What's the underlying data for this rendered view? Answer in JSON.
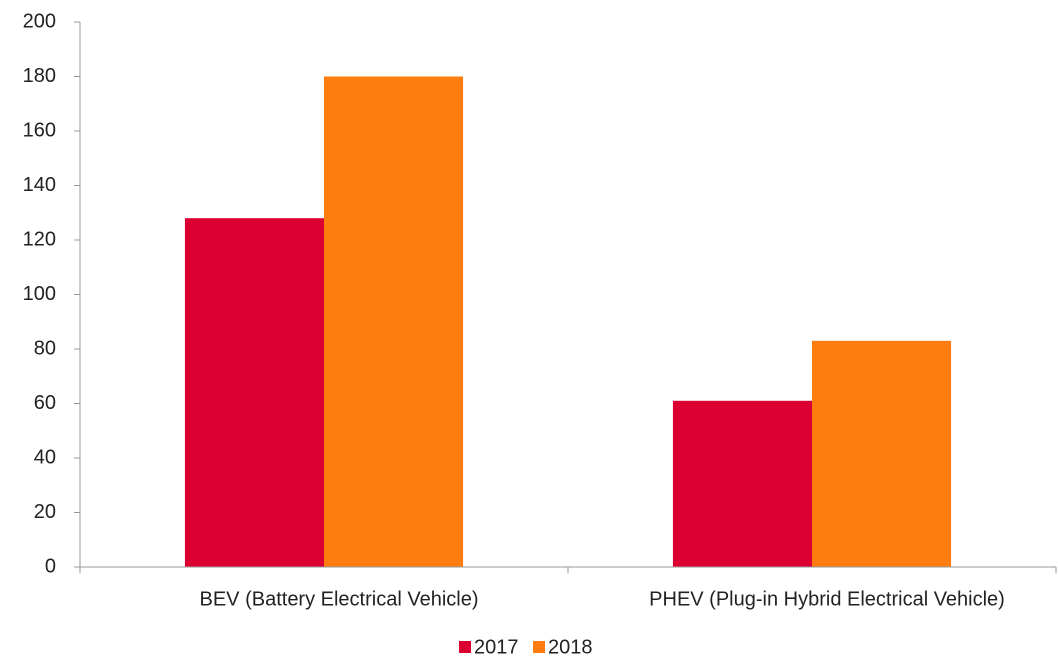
{
  "chart_data": {
    "type": "bar",
    "categories": [
      "BEV (Battery Electrical Vehicle)",
      "PHEV (Plug-in Hybrid Electrical Vehicle)"
    ],
    "series": [
      {
        "name": "2017",
        "color": "#dc0032",
        "values": [
          128,
          61
        ]
      },
      {
        "name": "2018",
        "color": "#ff7c0f",
        "values": [
          180,
          83
        ]
      }
    ],
    "ylim": [
      0,
      200
    ],
    "yticks": [
      0,
      20,
      40,
      60,
      80,
      100,
      120,
      140,
      160,
      180,
      200
    ],
    "grid": false,
    "legend": "bottom"
  }
}
